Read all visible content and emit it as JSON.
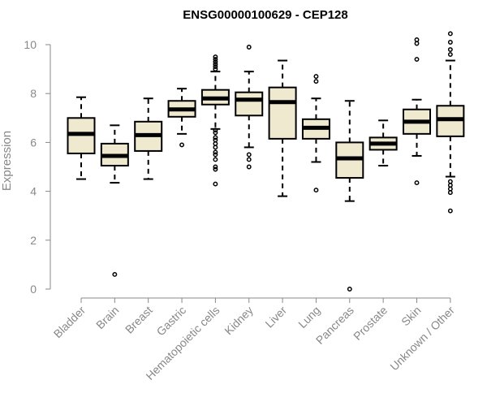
{
  "chart_data": {
    "type": "boxplot",
    "title": "ENSG00000100629 - CEP128",
    "xlabel": "",
    "ylabel": "Expression",
    "ylim": [
      0,
      10.5
    ],
    "yticks": [
      0,
      2,
      4,
      6,
      8,
      10
    ],
    "box_fill": "#efe9d0",
    "median_color": "#000000",
    "axis_color": "#888888",
    "categories": [
      "Bladder",
      "Brain",
      "Breast",
      "Gastric",
      "Hematopoietic cells",
      "Kidney",
      "Liver",
      "Lung",
      "Pancreas",
      "Prostate",
      "Skin",
      "Unknown / Other"
    ],
    "boxes": [
      {
        "name": "Bladder",
        "whisker_low": 4.5,
        "q1": 5.55,
        "median": 6.35,
        "q3": 7.0,
        "whisker_high": 7.85,
        "outliers": []
      },
      {
        "name": "Brain",
        "whisker_low": 4.35,
        "q1": 5.05,
        "median": 5.45,
        "q3": 5.95,
        "whisker_high": 6.7,
        "outliers": [
          0.6
        ]
      },
      {
        "name": "Breast",
        "whisker_low": 4.5,
        "q1": 5.65,
        "median": 6.3,
        "q3": 6.85,
        "whisker_high": 7.8,
        "outliers": []
      },
      {
        "name": "Gastric",
        "whisker_low": 6.35,
        "q1": 7.05,
        "median": 7.35,
        "q3": 7.7,
        "whisker_high": 8.2,
        "outliers": [
          5.9
        ]
      },
      {
        "name": "Hematopoietic cells",
        "whisker_low": 6.55,
        "q1": 7.55,
        "median": 7.8,
        "q3": 8.15,
        "whisker_high": 8.9,
        "outliers": [
          9.5,
          9.4,
          9.3,
          9.2,
          9.1,
          9.0,
          6.5,
          6.4,
          6.2,
          6.1,
          5.95,
          5.8,
          5.6,
          5.5,
          5.3,
          5.0,
          4.9,
          4.3
        ]
      },
      {
        "name": "Kidney",
        "whisker_low": 5.8,
        "q1": 7.1,
        "median": 7.75,
        "q3": 8.05,
        "whisker_high": 8.9,
        "outliers": [
          9.9,
          5.5,
          5.3,
          5.0
        ]
      },
      {
        "name": "Liver",
        "whisker_low": 3.8,
        "q1": 6.15,
        "median": 7.65,
        "q3": 8.25,
        "whisker_high": 9.35,
        "outliers": []
      },
      {
        "name": "Lung",
        "whisker_low": 5.2,
        "q1": 6.15,
        "median": 6.6,
        "q3": 6.95,
        "whisker_high": 7.8,
        "outliers": [
          8.7,
          8.5,
          4.05
        ]
      },
      {
        "name": "Pancreas",
        "whisker_low": 3.6,
        "q1": 4.55,
        "median": 5.35,
        "q3": 6.0,
        "whisker_high": 7.7,
        "outliers": [
          0.0
        ]
      },
      {
        "name": "Prostate",
        "whisker_low": 5.05,
        "q1": 5.7,
        "median": 5.95,
        "q3": 6.2,
        "whisker_high": 6.9,
        "outliers": []
      },
      {
        "name": "Skin",
        "whisker_low": 5.45,
        "q1": 6.35,
        "median": 6.85,
        "q3": 7.35,
        "whisker_high": 7.75,
        "outliers": [
          10.2,
          10.05,
          9.4,
          4.35
        ]
      },
      {
        "name": "Unknown / Other",
        "whisker_low": 4.6,
        "q1": 6.25,
        "median": 6.95,
        "q3": 7.5,
        "whisker_high": 9.35,
        "outliers": [
          10.45,
          10.1,
          9.8,
          9.6,
          4.4,
          4.25,
          4.1,
          3.95,
          3.2
        ]
      }
    ]
  }
}
